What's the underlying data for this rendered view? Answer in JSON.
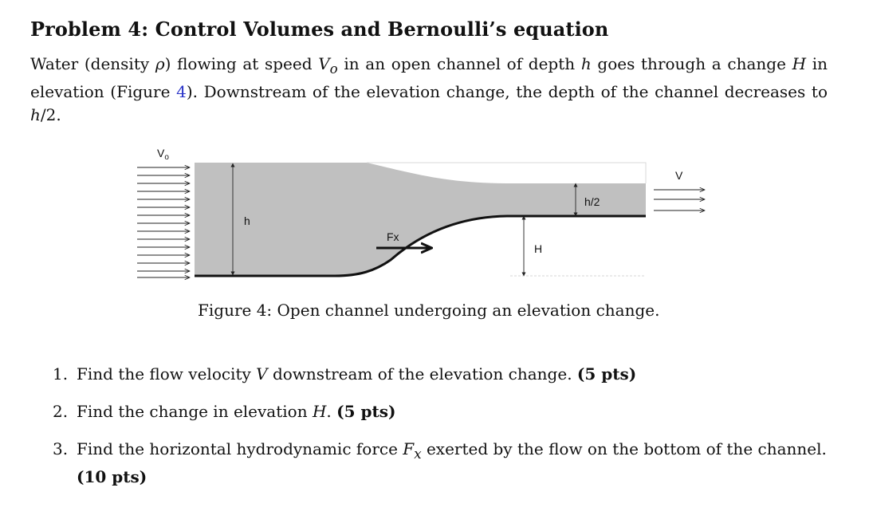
{
  "title": "Problem 4: Control Volumes and Bernoulli’s equation",
  "intro": {
    "t1": "Water (density ",
    "rho": "ρ",
    "t2": ") flowing at speed ",
    "v0": "V",
    "v0_sub": "o",
    "t3": " in an open channel of depth ",
    "h": "h",
    "t4": " goes through a change ",
    "H": "H",
    "t5": " in elevation (Figure ",
    "fig_ref": "4",
    "t6": "). Downstream of the elevation change, the depth of the channel decreases to ",
    "h2": "h",
    "t7": "/2."
  },
  "figure": {
    "label_v0": "V",
    "label_v0_sub": "o",
    "label_v": "V",
    "label_h": "h",
    "label_h_half": "h/2",
    "label_fx": "Fx",
    "label_H": "H",
    "water_color": "#c0c0c0"
  },
  "caption": "Figure 4: Open channel undergoing an elevation change.",
  "questions": [
    {
      "num": "1.",
      "a": "Find the flow velocity ",
      "var": "V",
      "b": " downstream of the elevation change. ",
      "pts": "(5 pts)"
    },
    {
      "num": "2.",
      "a": "Find the change in elevation ",
      "var": "H",
      "b": ". ",
      "pts": "(5 pts)"
    },
    {
      "num": "3.",
      "a": "Find the horizontal hydrodynamic force ",
      "var": "F",
      "var_sub": "x",
      "b": " exerted by the flow on the bottom of the channel. ",
      "pts": "(10 pts)"
    }
  ]
}
